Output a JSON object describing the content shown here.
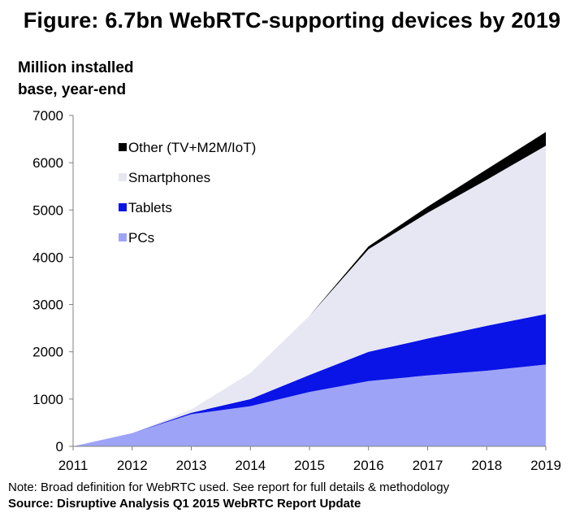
{
  "title": "Figure: 6.7bn WebRTC-supporting devices by 2019",
  "note": "Note: Broad definition for WebRTC used. See report for full details & methodology",
  "source": "Source: Disruptive Analysis Q1 2015 WebRTC Report Update",
  "chart_data": {
    "type": "area",
    "stacked": true,
    "ylabel_line1": "Million installed",
    "ylabel_line2": "base, year-end",
    "x": [
      "2011",
      "2012",
      "2013",
      "2014",
      "2015",
      "2016",
      "2017",
      "2018",
      "2019"
    ],
    "ylim": [
      0,
      7000
    ],
    "yticks": [
      "0",
      "1000",
      "2000",
      "3000",
      "4000",
      "5000",
      "6000",
      "7000"
    ],
    "grid": false,
    "legend_position": "top-left",
    "series": [
      {
        "name": "PCs",
        "color": "#9da4f7",
        "values": [
          0,
          280,
          680,
          850,
          1150,
          1380,
          1500,
          1600,
          1730
        ]
      },
      {
        "name": "Tablets",
        "color": "#0a14e6",
        "values": [
          0,
          0,
          30,
          150,
          360,
          620,
          780,
          950,
          1070
        ]
      },
      {
        "name": "Smartphones",
        "color": "#e6e7f2",
        "values": [
          0,
          0,
          70,
          550,
          1250,
          2170,
          2660,
          3090,
          3560
        ]
      },
      {
        "name": "Other (TV+M2M/IoT)",
        "color": "#000000",
        "values": [
          0,
          0,
          0,
          0,
          0,
          60,
          130,
          220,
          290
        ]
      }
    ],
    "legend_order": [
      "Other (TV+M2M/IoT)",
      "Smartphones",
      "Tablets",
      "PCs"
    ]
  }
}
